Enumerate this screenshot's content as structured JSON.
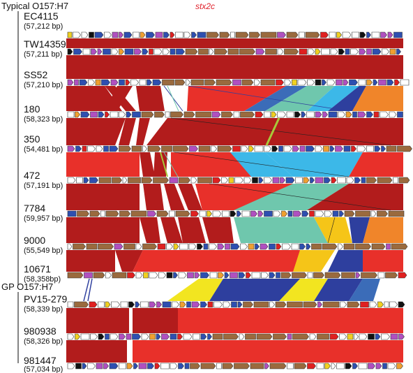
{
  "groups": [
    {
      "label": "Typical O157:H7"
    },
    {
      "label": "GP O157:H7"
    }
  ],
  "gene_label": "stx2c",
  "strains": [
    {
      "name": "EC4115",
      "bp": "(57,212 bp)"
    },
    {
      "name": "TW14359",
      "bp": "(57,211 bp)"
    },
    {
      "name": "SS52",
      "bp": "(57,210 bp)"
    },
    {
      "name": "180",
      "bp": "(58,323 bp)"
    },
    {
      "name": "350",
      "bp": "(54,481 bp)"
    },
    {
      "name": "472",
      "bp": "(57,191 bp)"
    },
    {
      "name": "7784",
      "bp": "(59,957 bp)"
    },
    {
      "name": "9000",
      "bp": "(55,549 bp)"
    },
    {
      "name": "10671",
      "bp": "(58,358bp)"
    },
    {
      "name": "PV15-279",
      "bp": "(58,339 bp)"
    },
    {
      "name": "980938",
      "bp": "(58,326 bp)"
    },
    {
      "name": "981447",
      "bp": "(57,034 bp)"
    }
  ],
  "colors": {
    "forward_match": "#b21c1c",
    "bright_red": "#e8302a",
    "steel_blue": "#3b6cb8",
    "teal": "#6fc7ad",
    "sky_blue": "#3cb8e8",
    "orange": "#f0852a",
    "navy": "#2e3f9e",
    "yellow": "#f2e520",
    "gold": "#f5c518",
    "lime": "#a8c83a",
    "gene_brown": "#9a6a3e",
    "gene_blue": "#2e4fb0",
    "gene_magenta": "#b050c0",
    "gene_yellow": "#f0d020",
    "gene_orange": "#f0a030",
    "gene_red": "#e02020",
    "gene_black": "#111111",
    "gene_white": "#ffffff"
  }
}
